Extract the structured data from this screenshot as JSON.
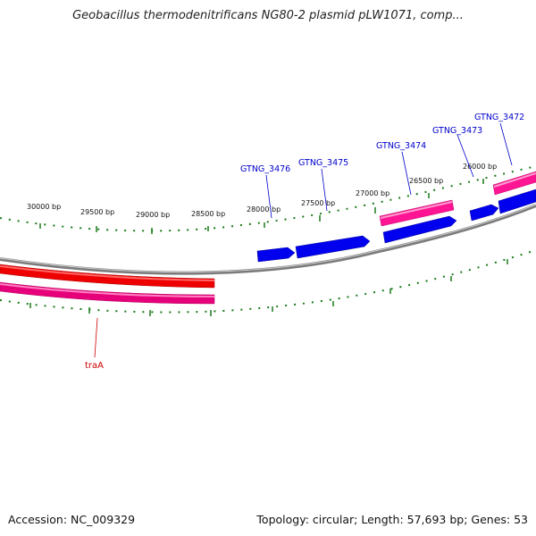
{
  "title": "Geobacillus thermodenitrificans NG80-2 plasmid pLW1071, comp...",
  "footer": {
    "accession": "Accession: NC_009329",
    "summary": "Topology: circular; Length: 57,693 bp; Genes: 53"
  },
  "colors": {
    "backbone": "#7a7a7a",
    "forward_gene": "#0000ee",
    "forward_rna_track": "#ff1493",
    "reverse_gene": "#ee0000",
    "reverse_rna_track": "#e6007a",
    "ticks": "#1a7a1a",
    "gene_label": "#0000cc",
    "tra_label": "#cc0000"
  },
  "scale_labels": [
    "30000 bp",
    "29500 bp",
    "29000 bp",
    "28500 bp",
    "28000 bp",
    "27500 bp",
    "27000 bp",
    "26500 bp",
    "26000 bp"
  ],
  "gene_labels": [
    "GTNG_3476",
    "GTNG_3475",
    "GTNG_3474",
    "GTNG_3473",
    "GTNG_3472"
  ],
  "reverse_label": "traA"
}
